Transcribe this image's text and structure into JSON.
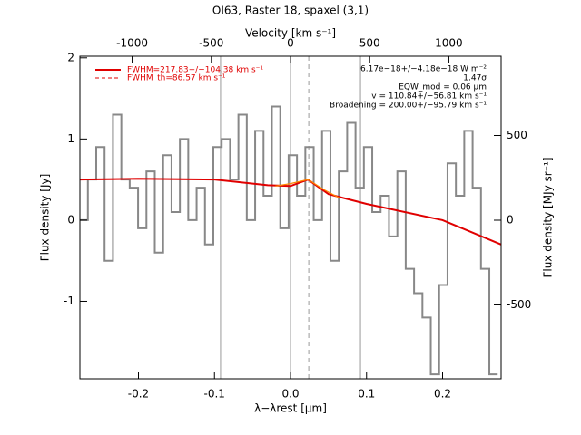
{
  "chart_data": {
    "type": "step",
    "title": "OI63, Raster 18, spaxel (3,1)",
    "xlabel": "λ−λrest [µm]",
    "x2label": "Velocity [km s⁻¹]",
    "ylabel": "Flux density [Jy]",
    "y2label": "Flux density [MJy sr⁻¹]",
    "xlim": [
      -0.277,
      0.277
    ],
    "xticks": [
      -0.2,
      -0.1,
      {
        "value": 0,
        "label": "0.0"
      },
      0.1,
      0.2
    ],
    "x2lim": [
      -1330,
      1330
    ],
    "x2ticks": [
      -1000,
      -500,
      0,
      500,
      1000
    ],
    "ylim": [
      -1.955,
      2.02
    ],
    "yticks": [
      -1,
      0,
      1,
      2
    ],
    "y2lim": [
      -936,
      968
    ],
    "y2ticks": [
      -500,
      0,
      500
    ],
    "vlines": [
      -0.092,
      0,
      0.092
    ],
    "dashed_vline": 0.024,
    "series": [
      {
        "name": "spectrum",
        "color": "#888888",
        "x": [
          -0.272,
          -0.261,
          -0.25,
          -0.239,
          -0.228,
          -0.217,
          -0.206,
          -0.195,
          -0.184,
          -0.173,
          -0.162,
          -0.151,
          -0.14,
          -0.129,
          -0.118,
          -0.107,
          -0.096,
          -0.085,
          -0.074,
          -0.063,
          -0.052,
          -0.041,
          -0.03,
          -0.019,
          -0.008,
          0.003,
          0.014,
          0.025,
          0.036,
          0.047,
          0.058,
          0.069,
          0.08,
          0.091,
          0.102,
          0.113,
          0.124,
          0.135,
          0.146,
          0.157,
          0.168,
          0.179,
          0.19,
          0.201,
          0.212,
          0.223,
          0.234,
          0.245,
          0.256,
          0.267
        ],
        "values": [
          0.0,
          0.5,
          0.9,
          -0.5,
          1.3,
          0.5,
          0.4,
          -0.1,
          0.6,
          -0.4,
          0.8,
          0.1,
          1.0,
          0.0,
          0.4,
          -0.3,
          0.9,
          1.0,
          0.5,
          1.3,
          0.0,
          1.1,
          0.3,
          1.4,
          -0.1,
          0.8,
          0.3,
          0.9,
          0.0,
          1.1,
          -0.5,
          0.6,
          1.2,
          0.4,
          0.9,
          0.1,
          0.3,
          -0.2,
          0.6,
          -0.6,
          -0.9,
          -1.2,
          -1.9,
          -0.8,
          0.7,
          0.3,
          1.1,
          0.4,
          -0.6,
          -1.9
        ]
      },
      {
        "name": "FWHM=217.83+/−104.38 km s⁻¹",
        "color": "#e00000",
        "x": [
          -0.277,
          -0.2,
          -0.1,
          -0.03,
          0.0,
          0.023,
          0.05,
          0.1,
          0.2,
          0.277
        ],
        "values": [
          0.5,
          0.51,
          0.5,
          0.43,
          0.42,
          0.5,
          0.32,
          0.2,
          0.0,
          -0.3
        ]
      },
      {
        "name": "FWHM_th=86.57 km s⁻¹",
        "color": "#ff8800",
        "x": [
          -0.02,
          0.0,
          0.023,
          0.045,
          0.065
        ],
        "values": [
          0.42,
          0.45,
          0.5,
          0.37,
          0.27
        ]
      }
    ],
    "annotations": [
      "6.17e−18+/−4.18e−18 W m⁻²",
      "1.47σ",
      "EQW_mod = 0.06 µm",
      "v = 110.84+/−56.81 km s⁻¹",
      "Broadening = 200.00+/−95.79 km s⁻¹"
    ]
  }
}
